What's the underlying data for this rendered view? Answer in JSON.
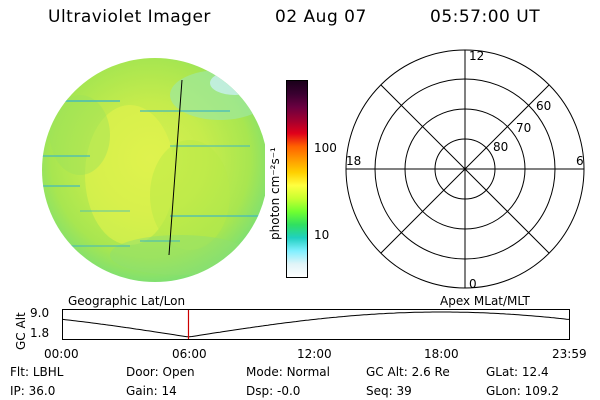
{
  "header": {
    "title": "Ultraviolet Imager",
    "date": "02 Aug 07",
    "time": "05:57:00 UT"
  },
  "colorbar": {
    "unit_label": "photon cm⁻²s⁻¹",
    "ticks": [
      "100",
      "10"
    ],
    "colors": [
      "#1a001a",
      "#3a0030",
      "#6a0040",
      "#a00030",
      "#e0001a",
      "#ff6000",
      "#ff9a00",
      "#ffd000",
      "#ffff40",
      "#c8ff30",
      "#70ff30",
      "#30e060",
      "#20d0c0",
      "#80f0ff",
      "#e0f4f8",
      "#ffffff"
    ]
  },
  "polar_plot": {
    "mlt_labels": {
      "top": "12",
      "left": "18",
      "right": "6",
      "bottom": "0"
    },
    "lat_labels": [
      "60",
      "70",
      "80"
    ]
  },
  "timeline": {
    "y_axis_label": "GC Alt",
    "y_ticks": [
      "9.0",
      "1.8"
    ],
    "left_title": "Geographic Lat/Lon",
    "right_title": "Apex MLat/MLT",
    "x_ticks": [
      "00:00",
      "06:00",
      "12:00",
      "18:00",
      "23:59"
    ],
    "current_time_fraction": 0.248,
    "marker_color": "#cc0000"
  },
  "info": {
    "row1": [
      {
        "key": "Flt:",
        "value": "LBHL"
      },
      {
        "key": "Door:",
        "value": "Open"
      },
      {
        "key": "Mode:",
        "value": "Normal"
      },
      {
        "key": "GC Alt:",
        "value": "2.6 Re"
      },
      {
        "key": "GLat:",
        "value": "12.4"
      }
    ],
    "row2": [
      {
        "key": "IP:",
        "value": "36.0"
      },
      {
        "key": "Gain:",
        "value": "14"
      },
      {
        "key": "Dsp:",
        "value": "-0.0"
      },
      {
        "key": "Seq:",
        "value": "39"
      },
      {
        "key": "GLon:",
        "value": "109.2"
      }
    ]
  }
}
